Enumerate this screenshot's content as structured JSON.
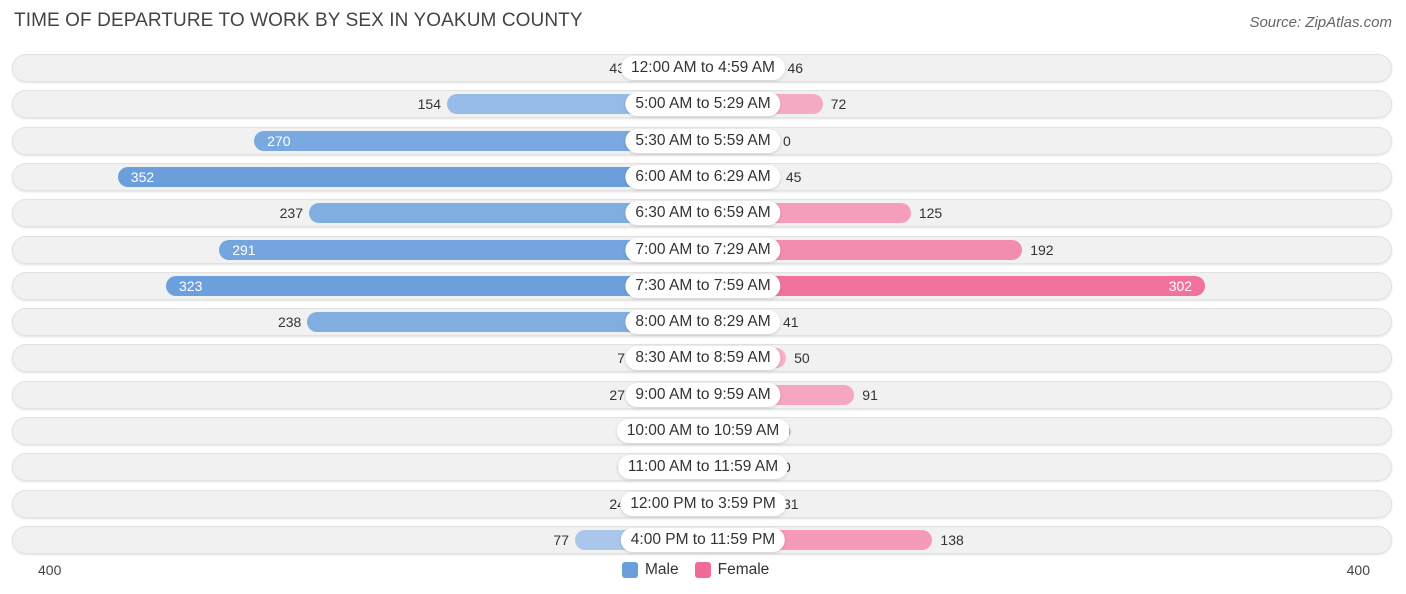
{
  "chart_data": {
    "type": "bar",
    "orientation": "horizontal-diverging",
    "title": "TIME OF DEPARTURE TO WORK BY SEX IN YOAKUM COUNTY",
    "source": "Source: ZipAtlas.com",
    "categories": [
      "12:00 AM to 4:59 AM",
      "5:00 AM to 5:29 AM",
      "5:30 AM to 5:59 AM",
      "6:00 AM to 6:29 AM",
      "6:30 AM to 6:59 AM",
      "7:00 AM to 7:29 AM",
      "7:30 AM to 7:59 AM",
      "8:00 AM to 8:29 AM",
      "8:30 AM to 8:59 AM",
      "9:00 AM to 9:59 AM",
      "10:00 AM to 10:59 AM",
      "11:00 AM to 11:59 AM",
      "12:00 PM to 3:59 PM",
      "4:00 PM to 11:59 PM"
    ],
    "series": [
      {
        "name": "Male",
        "color": "#6a9fdc",
        "values": [
          43,
          154,
          270,
          352,
          237,
          291,
          323,
          238,
          7,
          27,
          0,
          0,
          24,
          77
        ]
      },
      {
        "name": "Female",
        "color": "#f06b97",
        "values": [
          46,
          72,
          0,
          45,
          125,
          192,
          302,
          41,
          50,
          91,
          0,
          0,
          31,
          138
        ]
      }
    ],
    "axis": {
      "min_label": "400",
      "max_label": "400",
      "max": 400
    },
    "legend": [
      "Male",
      "Female"
    ],
    "legend_position": "bottom-center"
  }
}
